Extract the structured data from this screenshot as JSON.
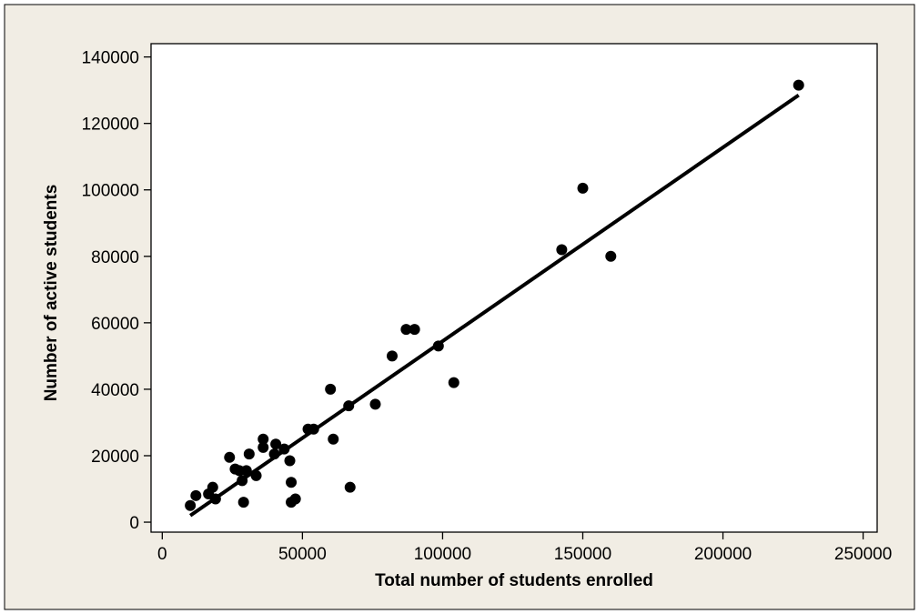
{
  "colors": {
    "figure_background": "#f1ede4",
    "plot_background": "#ffffff",
    "frame": "#000000",
    "markers": "#000000",
    "fit_line": "#000000"
  },
  "chart_data": {
    "type": "scatter",
    "title": "",
    "xlabel": "Total number of students enrolled",
    "ylabel": "Number of active students",
    "xlim": [
      -4000,
      255000
    ],
    "ylim": [
      -3000,
      144000
    ],
    "x_ticks": [
      0,
      50000,
      100000,
      150000,
      200000,
      250000
    ],
    "y_ticks": [
      0,
      20000,
      40000,
      60000,
      80000,
      100000,
      120000,
      140000
    ],
    "x_tick_labels": [
      "0",
      "50000",
      "100000",
      "150000",
      "200000",
      "250000"
    ],
    "y_tick_labels": [
      "0",
      "20000",
      "40000",
      "60000",
      "80000",
      "100000",
      "120000",
      "140000"
    ],
    "grid": false,
    "legend": "none",
    "series": [
      {
        "marker": "filled-circle",
        "points": [
          [
            10000,
            5000
          ],
          [
            12000,
            8000
          ],
          [
            16500,
            8500
          ],
          [
            18000,
            10500
          ],
          [
            19000,
            7000
          ],
          [
            24000,
            19500
          ],
          [
            26000,
            16000
          ],
          [
            27500,
            15500
          ],
          [
            28500,
            12500
          ],
          [
            29000,
            6000
          ],
          [
            30000,
            15500
          ],
          [
            31000,
            20500
          ],
          [
            33500,
            14000
          ],
          [
            36000,
            22500
          ],
          [
            36000,
            25000
          ],
          [
            40000,
            20500
          ],
          [
            40500,
            23500
          ],
          [
            43500,
            22000
          ],
          [
            45500,
            18500
          ],
          [
            46000,
            12000
          ],
          [
            46000,
            6000
          ],
          [
            47500,
            7000
          ],
          [
            52000,
            28000
          ],
          [
            54000,
            28000
          ],
          [
            60000,
            40000
          ],
          [
            61000,
            25000
          ],
          [
            66500,
            35000
          ],
          [
            67000,
            10500
          ],
          [
            76000,
            35500
          ],
          [
            82000,
            50000
          ],
          [
            87000,
            58000
          ],
          [
            90000,
            58000
          ],
          [
            98500,
            53000
          ],
          [
            104000,
            42000
          ],
          [
            142500,
            82000
          ],
          [
            150000,
            100500
          ],
          [
            160000,
            80000
          ],
          [
            227000,
            131500
          ]
        ]
      }
    ],
    "fit_line": {
      "x": [
        10000,
        227000
      ],
      "y": [
        2000,
        128500
      ]
    }
  }
}
